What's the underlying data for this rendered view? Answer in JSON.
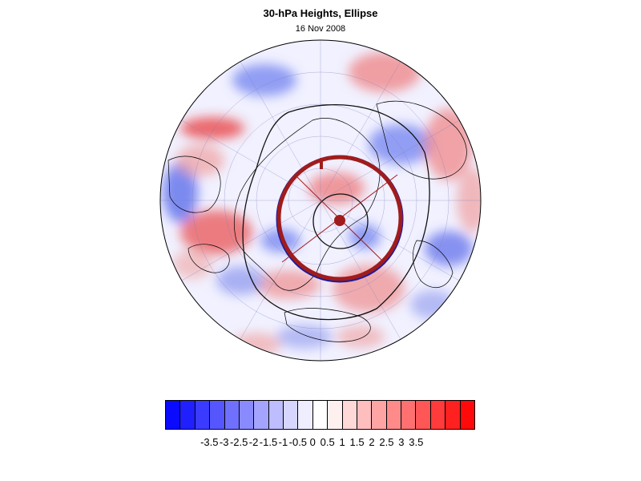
{
  "title": "30-hPa Heights, Ellipse",
  "subtitle": "16 Nov 2008",
  "map": {
    "projection": "orthographic north polar",
    "colors": {
      "ellipse": "#a01c1c",
      "ellipse_inner_trace": "#1a1aa0",
      "contour": "#111111",
      "coastline": "#000000",
      "grid": "#7f7fbf"
    }
  },
  "colorbar": {
    "colors": [
      "#0a0aff",
      "#2020ff",
      "#3b3bff",
      "#5656ff",
      "#7070ff",
      "#8a8aff",
      "#a4a4ff",
      "#bdbdff",
      "#d6d6ff",
      "#eeeeff",
      "#ffffff",
      "#fff0f0",
      "#ffd8d8",
      "#ffbebe",
      "#ffa4a4",
      "#ff8a8a",
      "#ff7070",
      "#ff5656",
      "#ff3b3b",
      "#ff2020",
      "#ff0a0a"
    ],
    "labels": [
      "-3.5",
      "-3",
      "-2.5",
      "-2",
      "-1.5",
      "-1",
      "-0.5",
      "0",
      "0.5",
      "1",
      "1.5",
      "2",
      "2.5",
      "3",
      "3.5"
    ]
  }
}
